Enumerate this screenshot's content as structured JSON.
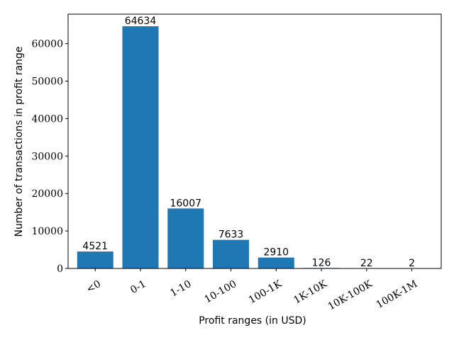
{
  "chart_data": {
    "type": "bar",
    "title": "",
    "xlabel": "Profit ranges (in USD)",
    "ylabel": "Number of transactions in profit range",
    "categories": [
      "<0",
      "0-1",
      "1-10",
      "10-100",
      "100-1K",
      "1K-10K",
      "10K-100K",
      "100K-1M"
    ],
    "values": [
      4521,
      64634,
      16007,
      7633,
      2910,
      126,
      22,
      2
    ],
    "data_labels": [
      "4521",
      "64634",
      "16007",
      "7633",
      "2910",
      "126",
      "22",
      "2"
    ],
    "ylim": [
      0,
      67865
    ],
    "yticks": [
      0,
      10000,
      20000,
      30000,
      40000,
      50000,
      60000
    ],
    "ytick_labels": [
      "0",
      "10000",
      "20000",
      "30000",
      "40000",
      "50000",
      "60000"
    ],
    "xtick_rotation": "30 degrees",
    "bar_color": "#1f77b4",
    "grid": false,
    "legend": "none"
  }
}
